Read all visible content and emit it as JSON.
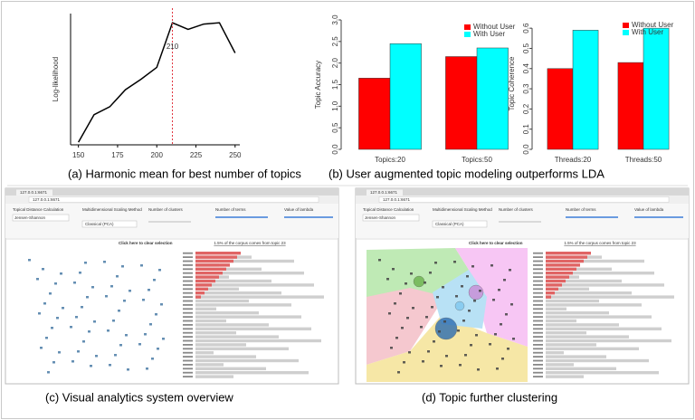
{
  "chart_data": [
    {
      "type": "line",
      "caption": "(a) Harmonic mean for best number of topics",
      "ylabel": "Log-likelihood",
      "x": [
        150,
        160,
        170,
        180,
        190,
        200,
        210,
        220,
        230,
        240,
        250
      ],
      "values": [
        2,
        23,
        29,
        42,
        50,
        59,
        93,
        88,
        92,
        93,
        70
      ],
      "color": "#000000",
      "xlim": [
        145,
        253
      ],
      "xticks": [
        150,
        175,
        200,
        225,
        250
      ],
      "ylim": [
        0,
        100
      ],
      "marker": {
        "x": 210,
        "label": "210",
        "color": "#e0303a"
      }
    },
    {
      "type": "bar",
      "caption": "(b) User augmented topic modeling outperforms  LDA",
      "ylabel": "Topic Accuracy",
      "categories": [
        "Topics:20",
        "Topics:50"
      ],
      "series": [
        {
          "name": "Without User",
          "color": "#ff0000",
          "values": [
            1.65,
            2.15
          ]
        },
        {
          "name": "With User",
          "color": "#00ffff",
          "values": [
            2.45,
            2.35
          ]
        }
      ],
      "ylim": [
        0,
        3
      ],
      "yticks": [
        {
          "value": 0,
          "label": "0.0"
        },
        0.5,
        {
          "value": 1,
          "label": "1.0"
        },
        1.5,
        {
          "value": 2,
          "label": "2.0"
        },
        2.5,
        {
          "value": 3,
          "label": "3.0"
        }
      ],
      "legend": "top-right"
    },
    {
      "type": "bar",
      "ylabel": "Topic Coherence",
      "categories": [
        "Threads:20",
        "Threads:50"
      ],
      "series": [
        {
          "name": "Without User",
          "color": "#ff0000",
          "values": [
            0.4,
            0.43
          ]
        },
        {
          "name": "With User",
          "color": "#00ffff",
          "values": [
            0.59,
            0.6
          ]
        }
      ],
      "ylim": [
        0,
        0.65
      ],
      "yticks": [
        {
          "value": 0,
          "label": "0.0"
        },
        0.1,
        0.2,
        0.3,
        0.4,
        0.5,
        0.6
      ],
      "legend": "top-right"
    }
  ],
  "screenshots": [
    {
      "caption": "(c) Visual analytics system overview",
      "address": "127.0.0.1:6671",
      "distance_label": "Topical Distance Calculation",
      "distance_value": "Jensen-Shannon",
      "scaling_label": "Multidimensional Scaling Method",
      "scaling_value": "Classical (PCA)",
      "clusters_label": "Number of clusters",
      "terms_label": "Number of terms",
      "lambda_label": "Value of lambda",
      "clear": "Click here to clear selection",
      "corpus": "1.5% of the corpus comes from topic 23",
      "view": "scatter"
    },
    {
      "caption": "(d) Topic further clustering",
      "address": "127.0.0.1:6671",
      "distance_label": "Topical Distance Calculation",
      "distance_value": "Jensen-Shannon",
      "scaling_label": "Multidimensional Scaling Method",
      "scaling_value": "Classical (PCA)",
      "clusters_label": "Number of clusters",
      "terms_label": "Number of terms",
      "lambda_label": "Value of lambda",
      "clear": "Click here to clear selection",
      "corpus": "1.5% of the corpus comes from topic 23",
      "view": "clusters"
    }
  ]
}
